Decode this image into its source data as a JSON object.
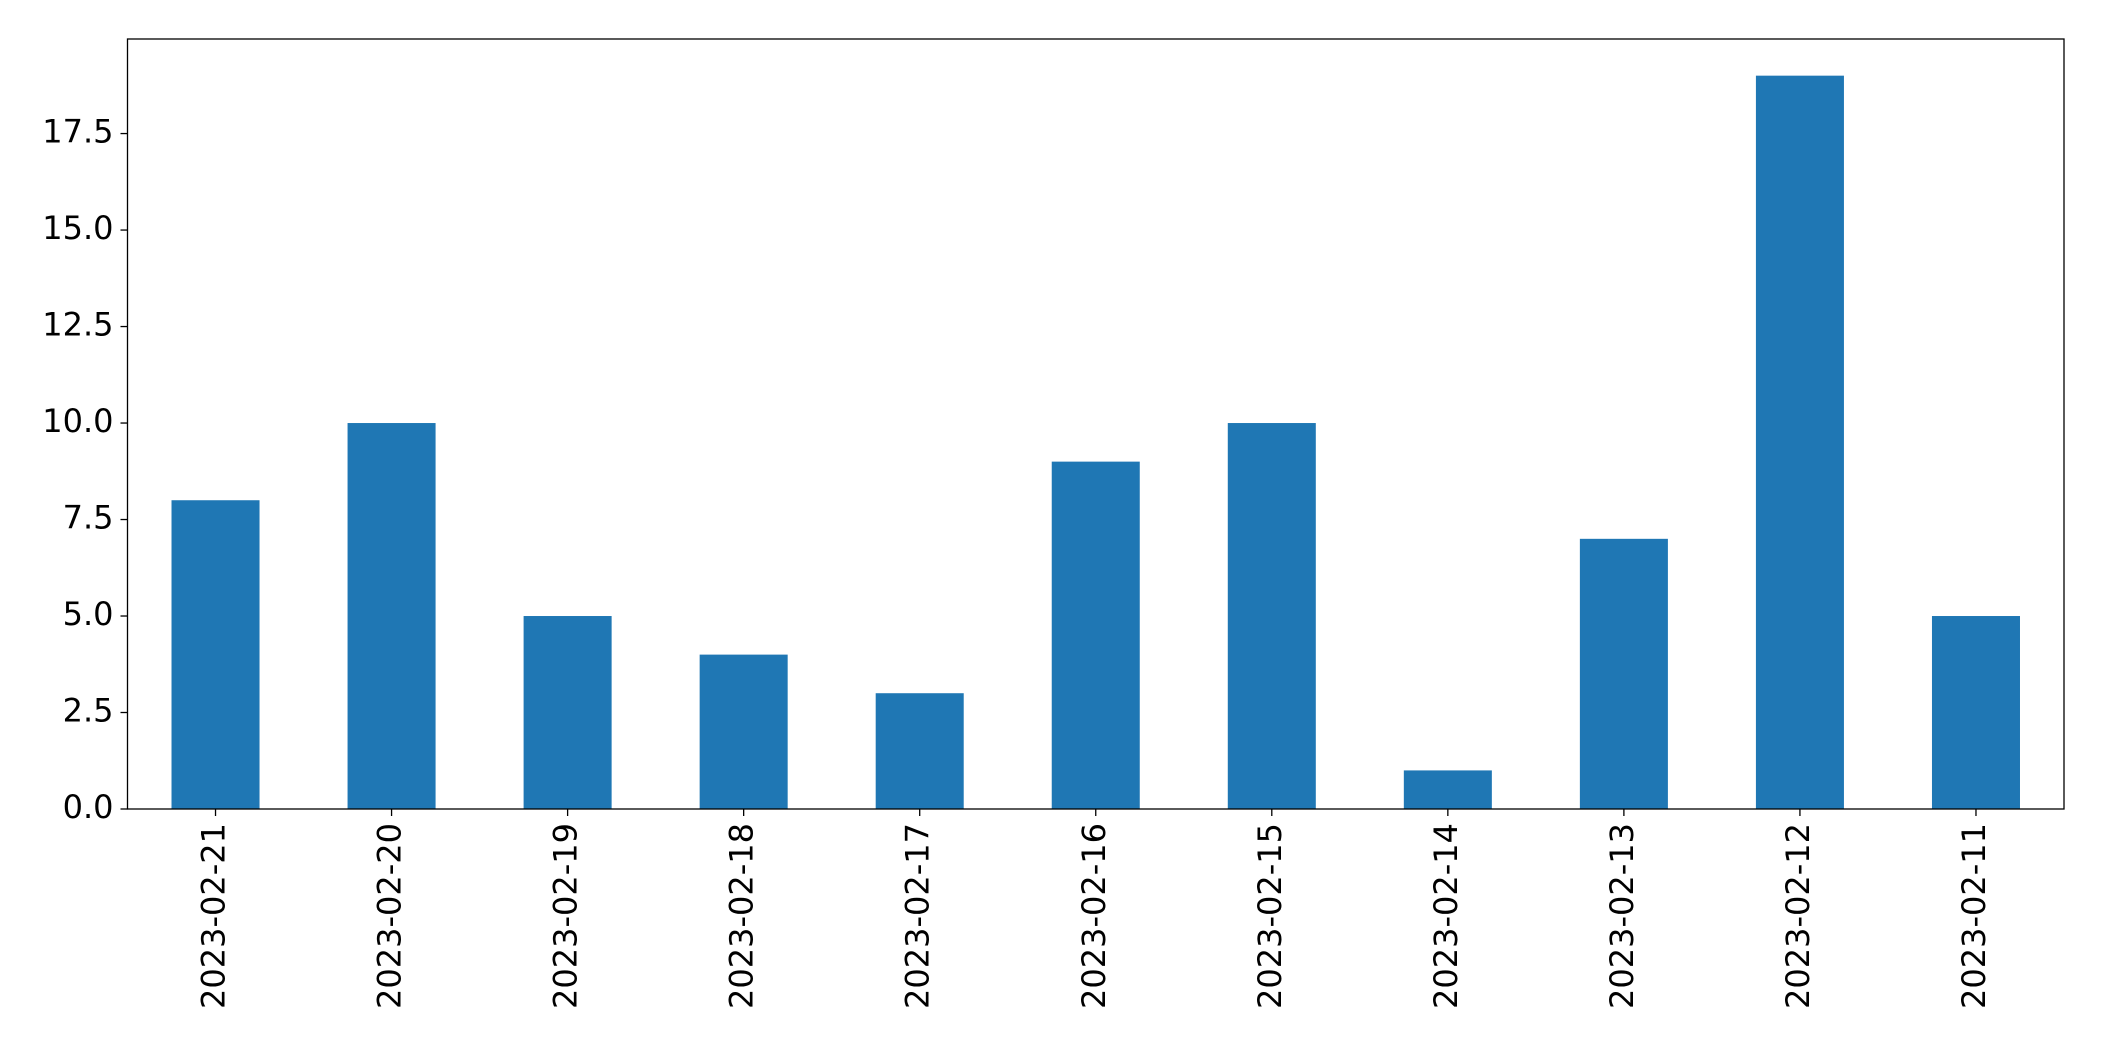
{
  "chart_data": {
    "type": "bar",
    "categories": [
      "2023-02-21",
      "2023-02-20",
      "2023-02-19",
      "2023-02-18",
      "2023-02-17",
      "2023-02-16",
      "2023-02-15",
      "2023-02-14",
      "2023-02-13",
      "2023-02-12",
      "2023-02-11"
    ],
    "values": [
      8,
      10,
      5,
      4,
      3,
      9,
      10,
      1,
      7,
      19,
      5
    ],
    "color": "#1f77b4",
    "ylim": [
      0,
      19.95
    ],
    "yticks": [
      {
        "value": 0,
        "label": "0.0"
      },
      2.5,
      {
        "value": 5,
        "label": "5.0"
      },
      7.5,
      {
        "value": 10,
        "label": "10.0"
      },
      12.5,
      {
        "value": 15,
        "label": "15.0"
      },
      17.5
    ],
    "grid": false
  }
}
